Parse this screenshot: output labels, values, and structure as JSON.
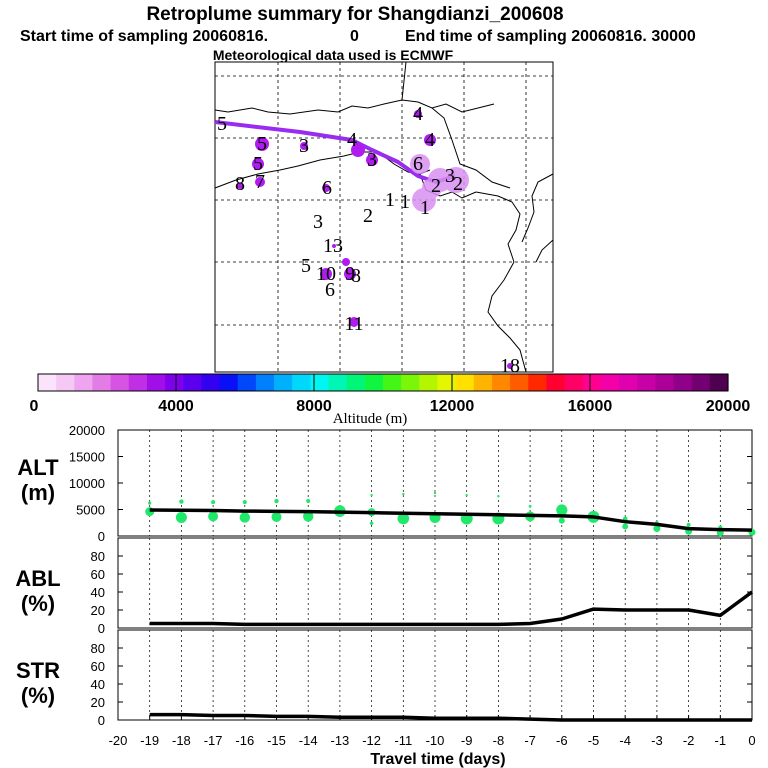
{
  "title": "Retroplume summary for Shangdianzi_200608",
  "subtitle": {
    "start_label": "Start time of sampling 20060816.",
    "start_value": "0",
    "end_label": "End time of sampling 20060816. 30000"
  },
  "met_line": "Meteorological data used is ECMWF",
  "colors": {
    "plume_path": "#9a2bf0",
    "panel_line": "#000000",
    "alt_dots": "#1fe86a",
    "map_marker": "#b01cf0",
    "map_halo": "#d890f0"
  },
  "map_labels": [
    {
      "text": "5",
      "kind": "path"
    },
    {
      "text": "4",
      "kind": "path"
    },
    {
      "text": "5",
      "kind": "cluster"
    },
    {
      "text": "3",
      "kind": "cluster"
    },
    {
      "text": "4",
      "kind": "cluster"
    },
    {
      "text": "4",
      "kind": "cluster"
    },
    {
      "text": "5",
      "kind": "cluster"
    },
    {
      "text": "3",
      "kind": "cluster"
    },
    {
      "text": "6",
      "kind": "cluster"
    },
    {
      "text": "8",
      "kind": "cluster"
    },
    {
      "text": "7",
      "kind": "cluster"
    },
    {
      "text": "6",
      "kind": "cluster"
    },
    {
      "text": "3",
      "kind": "cluster"
    },
    {
      "text": "2",
      "kind": "cluster"
    },
    {
      "text": "1",
      "kind": "cluster"
    },
    {
      "text": "1",
      "kind": "cluster"
    },
    {
      "text": "1",
      "kind": "cluster"
    },
    {
      "text": "3",
      "kind": "cluster"
    },
    {
      "text": "2",
      "kind": "cluster"
    },
    {
      "text": "2",
      "kind": "cluster"
    },
    {
      "text": "13",
      "kind": "cluster"
    },
    {
      "text": "5",
      "kind": "cluster"
    },
    {
      "text": "10",
      "kind": "cluster"
    },
    {
      "text": "9",
      "kind": "cluster"
    },
    {
      "text": "8",
      "kind": "cluster"
    },
    {
      "text": "6",
      "kind": "cluster"
    },
    {
      "text": "11",
      "kind": "cluster"
    },
    {
      "text": "18",
      "kind": "cluster"
    }
  ],
  "colorbar": {
    "label": "Altitude (m)",
    "ticks": [
      "0",
      "4000",
      "8000",
      "12000",
      "16000",
      "20000"
    ],
    "range": [
      0,
      20000
    ],
    "colors": [
      "#fbe4fb",
      "#f6c8f6",
      "#eea4ee",
      "#e47ce6",
      "#d653e3",
      "#c02ee6",
      "#a00fe8",
      "#7f00ea",
      "#5a00ee",
      "#3300f2",
      "#0a10f6",
      "#0048fa",
      "#0080fc",
      "#00b0fc",
      "#00d8fb",
      "#00f6f0",
      "#00f6b4",
      "#00f678",
      "#10f640",
      "#44f616",
      "#7cf608",
      "#b4f600",
      "#e4f600",
      "#ffe000",
      "#ffb400",
      "#ff8800",
      "#ff5c00",
      "#ff2800",
      "#ff0030",
      "#ff0066",
      "#ff0090",
      "#f400a8",
      "#e000b0",
      "#c800a8",
      "#ac0098",
      "#900088",
      "#720070",
      "#500050"
    ]
  },
  "chart_data": [
    {
      "type": "scatter-line",
      "panel_label": [
        "ALT",
        "(m)"
      ],
      "ylim": [
        0,
        20000
      ],
      "yticks": [
        "0",
        "5000",
        "10000",
        "15000",
        "20000"
      ],
      "line_x": [
        -19,
        -18,
        -17,
        -16,
        -15,
        -14,
        -13,
        -12,
        -11,
        -10,
        -9,
        -8,
        -7,
        -6,
        -5,
        -4,
        -3,
        -2,
        -1,
        0
      ],
      "line_y": [
        4900,
        4850,
        4800,
        4700,
        4650,
        4600,
        4500,
        4400,
        4300,
        4200,
        4100,
        4000,
        3900,
        3800,
        3600,
        2700,
        2200,
        1400,
        1200,
        1100
      ],
      "points": [
        {
          "x": -19,
          "y": 6200,
          "size": 1.6
        },
        {
          "x": -19,
          "y": 4600,
          "size": 4.5
        },
        {
          "x": -18,
          "y": 6500,
          "size": 2.2
        },
        {
          "x": -18,
          "y": 3500,
          "size": 5.5
        },
        {
          "x": -17,
          "y": 6400,
          "size": 2.0
        },
        {
          "x": -17,
          "y": 3700,
          "size": 5.0
        },
        {
          "x": -16,
          "y": 6400,
          "size": 2.0
        },
        {
          "x": -16,
          "y": 3500,
          "size": 5.2
        },
        {
          "x": -15,
          "y": 6600,
          "size": 2.2
        },
        {
          "x": -15,
          "y": 3600,
          "size": 5.0
        },
        {
          "x": -14,
          "y": 6600,
          "size": 2.0
        },
        {
          "x": -14,
          "y": 3700,
          "size": 5.2
        },
        {
          "x": -13,
          "y": 4700,
          "size": 5.8
        },
        {
          "x": -12,
          "y": 7700,
          "size": 1.2
        },
        {
          "x": -12,
          "y": 4500,
          "size": 4.0
        },
        {
          "x": -12,
          "y": 2400,
          "size": 1.8
        },
        {
          "x": -11,
          "y": 7900,
          "size": 1.2
        },
        {
          "x": -11,
          "y": 3300,
          "size": 5.8
        },
        {
          "x": -10,
          "y": 8100,
          "size": 1.2
        },
        {
          "x": -10,
          "y": 3500,
          "size": 5.5
        },
        {
          "x": -9,
          "y": 7700,
          "size": 1.2
        },
        {
          "x": -9,
          "y": 3300,
          "size": 6.0
        },
        {
          "x": -8,
          "y": 7500,
          "size": 1.2
        },
        {
          "x": -8,
          "y": 3300,
          "size": 6.0
        },
        {
          "x": -7,
          "y": 3700,
          "size": 5.0
        },
        {
          "x": -7,
          "y": 5600,
          "size": 1.4
        },
        {
          "x": -6,
          "y": 4900,
          "size": 5.6
        },
        {
          "x": -6,
          "y": 2900,
          "size": 3.0
        },
        {
          "x": -5,
          "y": 3600,
          "size": 6.0
        },
        {
          "x": -4,
          "y": 3200,
          "size": 2.4
        },
        {
          "x": -4,
          "y": 1800,
          "size": 3.0
        },
        {
          "x": -3,
          "y": 2400,
          "size": 2.2
        },
        {
          "x": -3,
          "y": 1400,
          "size": 3.5
        },
        {
          "x": -2,
          "y": 2100,
          "size": 2.0
        },
        {
          "x": -2,
          "y": 900,
          "size": 3.5
        },
        {
          "x": -1,
          "y": 1600,
          "size": 2.0
        },
        {
          "x": -1,
          "y": 600,
          "size": 3.5
        },
        {
          "x": 0,
          "y": 700,
          "size": 3.5
        }
      ]
    },
    {
      "type": "line",
      "panel_label": [
        "ABL",
        "(%)"
      ],
      "ylim": [
        0,
        100
      ],
      "yticks": [
        "0",
        "20",
        "40",
        "60",
        "80"
      ],
      "x": [
        -19,
        -18,
        -17,
        -16,
        -15,
        -14,
        -13,
        -12,
        -11,
        -10,
        -9,
        -8,
        -7,
        -6,
        -5,
        -4,
        -3,
        -2,
        -1,
        0
      ],
      "y": [
        5,
        5,
        5,
        4,
        4,
        4,
        4,
        4,
        4,
        4,
        4,
        4,
        5,
        10,
        21,
        20,
        20,
        20,
        14,
        40
      ]
    },
    {
      "type": "line",
      "panel_label": [
        "STR",
        "(%)"
      ],
      "ylim": [
        0,
        100
      ],
      "yticks": [
        "0",
        "20",
        "40",
        "60",
        "80"
      ],
      "x": [
        -19,
        -18,
        -17,
        -16,
        -15,
        -14,
        -13,
        -12,
        -11,
        -10,
        -9,
        -8,
        -7,
        -6,
        -5,
        -4,
        -3,
        -2,
        -1,
        0
      ],
      "y": [
        6,
        6,
        5,
        5,
        4,
        4,
        3,
        3,
        3,
        2,
        2,
        2,
        1,
        0,
        0,
        0,
        0,
        0,
        0,
        0
      ]
    }
  ],
  "xaxis": {
    "label": "Travel time (days)",
    "xlim": [
      -20,
      0
    ],
    "ticks": [
      "-20",
      "-19",
      "-18",
      "-17",
      "-16",
      "-15",
      "-14",
      "-13",
      "-12",
      "-11",
      "-10",
      "-9",
      "-8",
      "-7",
      "-6",
      "-5",
      "-4",
      "-3",
      "-2",
      "-1",
      "0"
    ]
  }
}
